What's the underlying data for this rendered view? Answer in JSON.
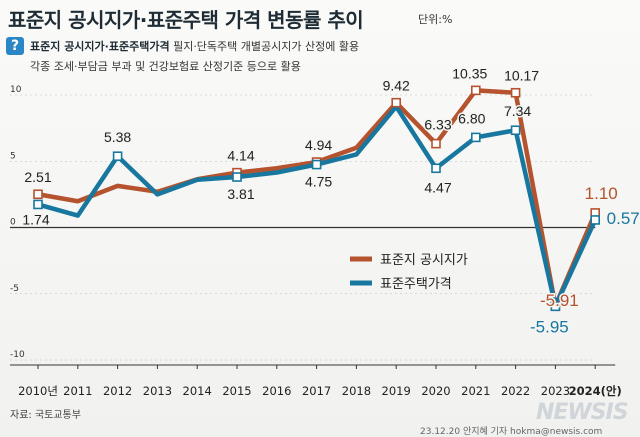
{
  "title": "표준지 공시지가·표준주택 가격 변동률 추이",
  "unit": "단위:%",
  "info": {
    "icon": "question-icon",
    "term": "표준지 공시지가·표준주택가격",
    "line1_rest": " 필지·단독주택 개별공시지가 산정에 활용",
    "line2": "각종 조세·부담금 부과 및 건강보험료 산정기준 등으로 활용"
  },
  "source": "자료: 국토교통부",
  "credit": "23.12.20 안지혜 기자 hokma@newsis.com",
  "watermark": "NEWSIS",
  "colors": {
    "land": "#b5532f",
    "house": "#17779e",
    "axis": "#333333",
    "grid": "#bbbbbb"
  },
  "chart_data": {
    "type": "line",
    "x": [
      "2010년",
      "2011",
      "2012",
      "2013",
      "2014",
      "2015",
      "2016",
      "2017",
      "2018",
      "2019",
      "2020",
      "2021",
      "2022",
      "2023",
      "2024(안)"
    ],
    "ylim": [
      -10,
      10
    ],
    "yticks": [
      "10",
      "5",
      "0",
      "-5",
      "-10"
    ],
    "series": [
      {
        "name": "표준지 공시지가",
        "values": [
          2.51,
          1.98,
          3.14,
          2.7,
          3.64,
          4.14,
          4.47,
          4.94,
          6.02,
          9.42,
          6.33,
          10.35,
          10.17,
          -5.91,
          1.1
        ]
      },
      {
        "name": "표준주택가격",
        "values": [
          1.74,
          0.9,
          5.38,
          2.5,
          3.6,
          3.81,
          4.15,
          4.75,
          5.51,
          9.13,
          4.47,
          6.8,
          7.34,
          -5.95,
          0.57
        ]
      }
    ],
    "labels": {
      "land": [
        {
          "i": 0,
          "text": "2.51"
        },
        {
          "i": 5,
          "text": "4.14"
        },
        {
          "i": 7,
          "text": "4.94"
        },
        {
          "i": 9,
          "text": "9.42"
        },
        {
          "i": 10,
          "text": "6.33"
        },
        {
          "i": 11,
          "text": "10.35"
        },
        {
          "i": 12,
          "text": "10.17"
        },
        {
          "i": 13,
          "text": "-5.91"
        },
        {
          "i": 14,
          "text": "1.10"
        }
      ],
      "house": [
        {
          "i": 0,
          "text": "1.74"
        },
        {
          "i": 2,
          "text": "5.38"
        },
        {
          "i": 5,
          "text": "3.81"
        },
        {
          "i": 7,
          "text": "4.75"
        },
        {
          "i": 10,
          "text": "4.47"
        },
        {
          "i": 11,
          "text": "6.80"
        },
        {
          "i": 12,
          "text": "7.34"
        },
        {
          "i": 13,
          "text": "-5.95"
        },
        {
          "i": 14,
          "text": "0.57"
        }
      ]
    },
    "legend_position": "right-middle"
  }
}
